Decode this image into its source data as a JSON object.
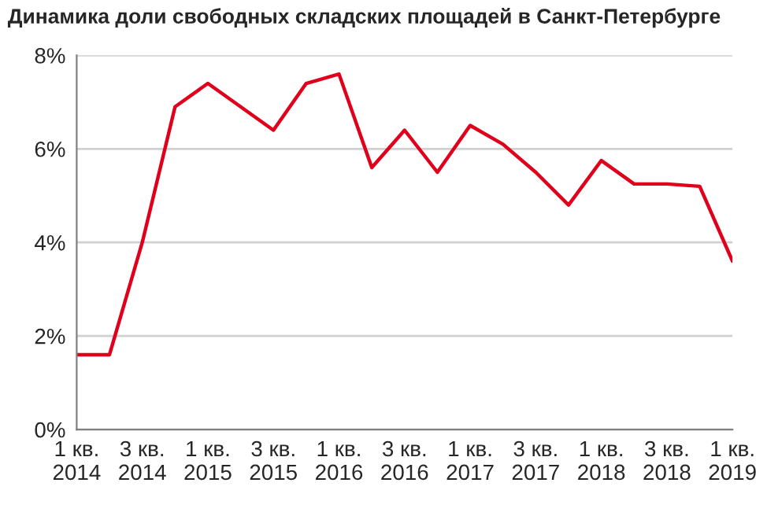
{
  "chart_data": {
    "type": "line",
    "title": "Динамика доли свободных складских площадей в Санкт-Петербурге",
    "categories": [
      "1 кв.\n2014",
      null,
      "3 кв.\n2014",
      null,
      "1 кв.\n2015",
      null,
      "3 кв.\n2015",
      null,
      "1 кв.\n2016",
      null,
      "3 кв.\n2016",
      null,
      "1 кв.\n2017",
      null,
      "3 кв.\n2017",
      null,
      "1 кв.\n2018",
      null,
      "3 кв.\n2018",
      null,
      "1 кв.\n2019"
    ],
    "series": [
      {
        "color": "#e0001b",
        "values": [
          1.6,
          1.6,
          4.0,
          6.9,
          7.4,
          6.9,
          6.4,
          7.4,
          7.6,
          5.6,
          6.4,
          5.5,
          6.5,
          6.1,
          5.5,
          4.8,
          5.75,
          5.25,
          5.25,
          5.2,
          3.6
        ]
      }
    ],
    "ylim": [
      0,
      8
    ],
    "yticks": [
      {
        "value": 0,
        "label": "0%"
      },
      {
        "value": 2,
        "label": "2%"
      },
      {
        "value": 4,
        "label": "4%"
      },
      {
        "value": 6,
        "label": "6%"
      },
      {
        "value": 8,
        "label": "8%"
      }
    ],
    "grid": "y",
    "marker": "none",
    "line_style": "solid"
  }
}
